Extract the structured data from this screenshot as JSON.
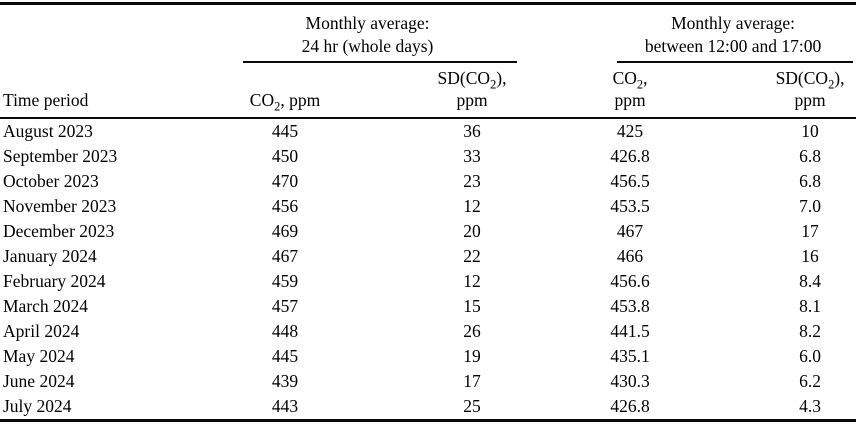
{
  "table": {
    "groups": [
      {
        "line1": "Monthly average:",
        "line2": "24 hr (whole days)"
      },
      {
        "line1": "Monthly average:",
        "line2": "between 12:00 and 17:00"
      }
    ],
    "headers": {
      "time_period": "Time period",
      "co2_24h": {
        "pre": "CO",
        "sub": "2",
        "post": ", ppm"
      },
      "sd_24h": {
        "pre": "SD(CO",
        "sub": "2",
        "post": "),",
        "line2": "ppm"
      },
      "co2_window": {
        "pre": "CO",
        "sub": "2",
        "post": ",",
        "line2": "ppm"
      },
      "sd_window": {
        "pre": "SD(CO",
        "sub": "2",
        "post": "),",
        "line2": "ppm"
      }
    },
    "rows": [
      {
        "period": "August 2023",
        "co2_24h": "445",
        "sd_24h": "36",
        "co2_window": "425",
        "sd_window": "10"
      },
      {
        "period": "September 2023",
        "co2_24h": "450",
        "sd_24h": "33",
        "co2_window": "426.8",
        "sd_window": "6.8"
      },
      {
        "period": "October 2023",
        "co2_24h": "470",
        "sd_24h": "23",
        "co2_window": "456.5",
        "sd_window": "6.8"
      },
      {
        "period": "November 2023",
        "co2_24h": "456",
        "sd_24h": "12",
        "co2_window": "453.5",
        "sd_window": "7.0"
      },
      {
        "period": "December 2023",
        "co2_24h": "469",
        "sd_24h": "20",
        "co2_window": "467",
        "sd_window": "17"
      },
      {
        "period": "January 2024",
        "co2_24h": "467",
        "sd_24h": "22",
        "co2_window": "466",
        "sd_window": "16"
      },
      {
        "period": "February 2024",
        "co2_24h": "459",
        "sd_24h": "12",
        "co2_window": "456.6",
        "sd_window": "8.4"
      },
      {
        "period": "March 2024",
        "co2_24h": "457",
        "sd_24h": "15",
        "co2_window": "453.8",
        "sd_window": "8.1"
      },
      {
        "period": "April 2024",
        "co2_24h": "448",
        "sd_24h": "26",
        "co2_window": "441.5",
        "sd_window": "8.2"
      },
      {
        "period": "May 2024",
        "co2_24h": "445",
        "sd_24h": "19",
        "co2_window": "435.1",
        "sd_window": "6.0"
      },
      {
        "period": "June 2024",
        "co2_24h": "439",
        "sd_24h": "17",
        "co2_window": "430.3",
        "sd_window": "6.2"
      },
      {
        "period": "July 2024",
        "co2_24h": "443",
        "sd_24h": "25",
        "co2_window": "426.8",
        "sd_window": "4.3"
      }
    ]
  },
  "chart_data": {
    "type": "table",
    "title": "",
    "column_groups": [
      "Monthly average: 24 hr (whole days)",
      "Monthly average: between 12:00 and 17:00"
    ],
    "columns": [
      "Time period",
      "CO2, ppm (24 hr)",
      "SD(CO2), ppm (24 hr)",
      "CO2, ppm (12:00-17:00)",
      "SD(CO2), ppm (12:00-17:00)"
    ],
    "rows": [
      [
        "August 2023",
        445,
        36,
        425,
        10
      ],
      [
        "September 2023",
        450,
        33,
        426.8,
        6.8
      ],
      [
        "October 2023",
        470,
        23,
        456.5,
        6.8
      ],
      [
        "November 2023",
        456,
        12,
        453.5,
        7.0
      ],
      [
        "December 2023",
        469,
        20,
        467,
        17
      ],
      [
        "January 2024",
        467,
        22,
        466,
        16
      ],
      [
        "February 2024",
        459,
        12,
        456.6,
        8.4
      ],
      [
        "March 2024",
        457,
        15,
        453.8,
        8.1
      ],
      [
        "April 2024",
        448,
        26,
        441.5,
        8.2
      ],
      [
        "May 2024",
        445,
        19,
        435.1,
        6.0
      ],
      [
        "June 2024",
        439,
        17,
        430.3,
        6.2
      ],
      [
        "July 2024",
        443,
        25,
        426.8,
        4.3
      ]
    ]
  }
}
